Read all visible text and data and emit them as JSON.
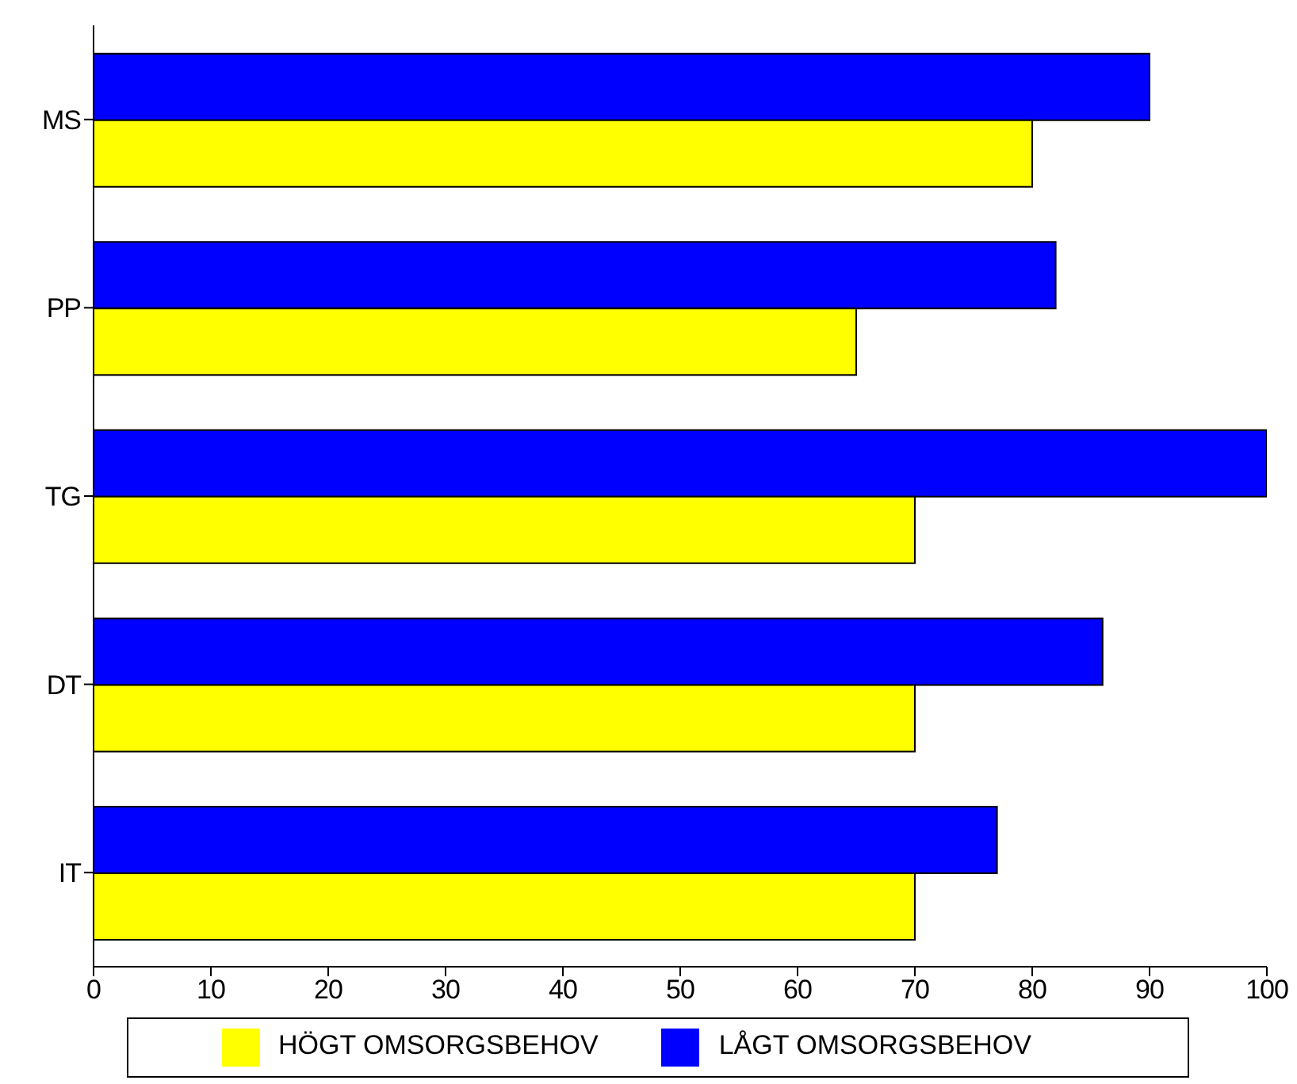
{
  "chart_data": {
    "type": "bar",
    "orientation": "horizontal",
    "categories": [
      "MS",
      "PP",
      "TG",
      "DT",
      "IT"
    ],
    "series": [
      {
        "name": "LÅGT OMSORGSBEHOV",
        "color": "#0000ff",
        "values": [
          90,
          82,
          100,
          86,
          77
        ]
      },
      {
        "name": "HÖGT OMSORGSBEHOV",
        "color": "#ffff00",
        "values": [
          80,
          65,
          70,
          70,
          70
        ]
      }
    ],
    "xlim": [
      0,
      100
    ],
    "xticks": [
      0,
      10,
      20,
      30,
      40,
      50,
      60,
      70,
      80,
      90,
      100
    ],
    "grid": false,
    "legend": "bottom"
  }
}
